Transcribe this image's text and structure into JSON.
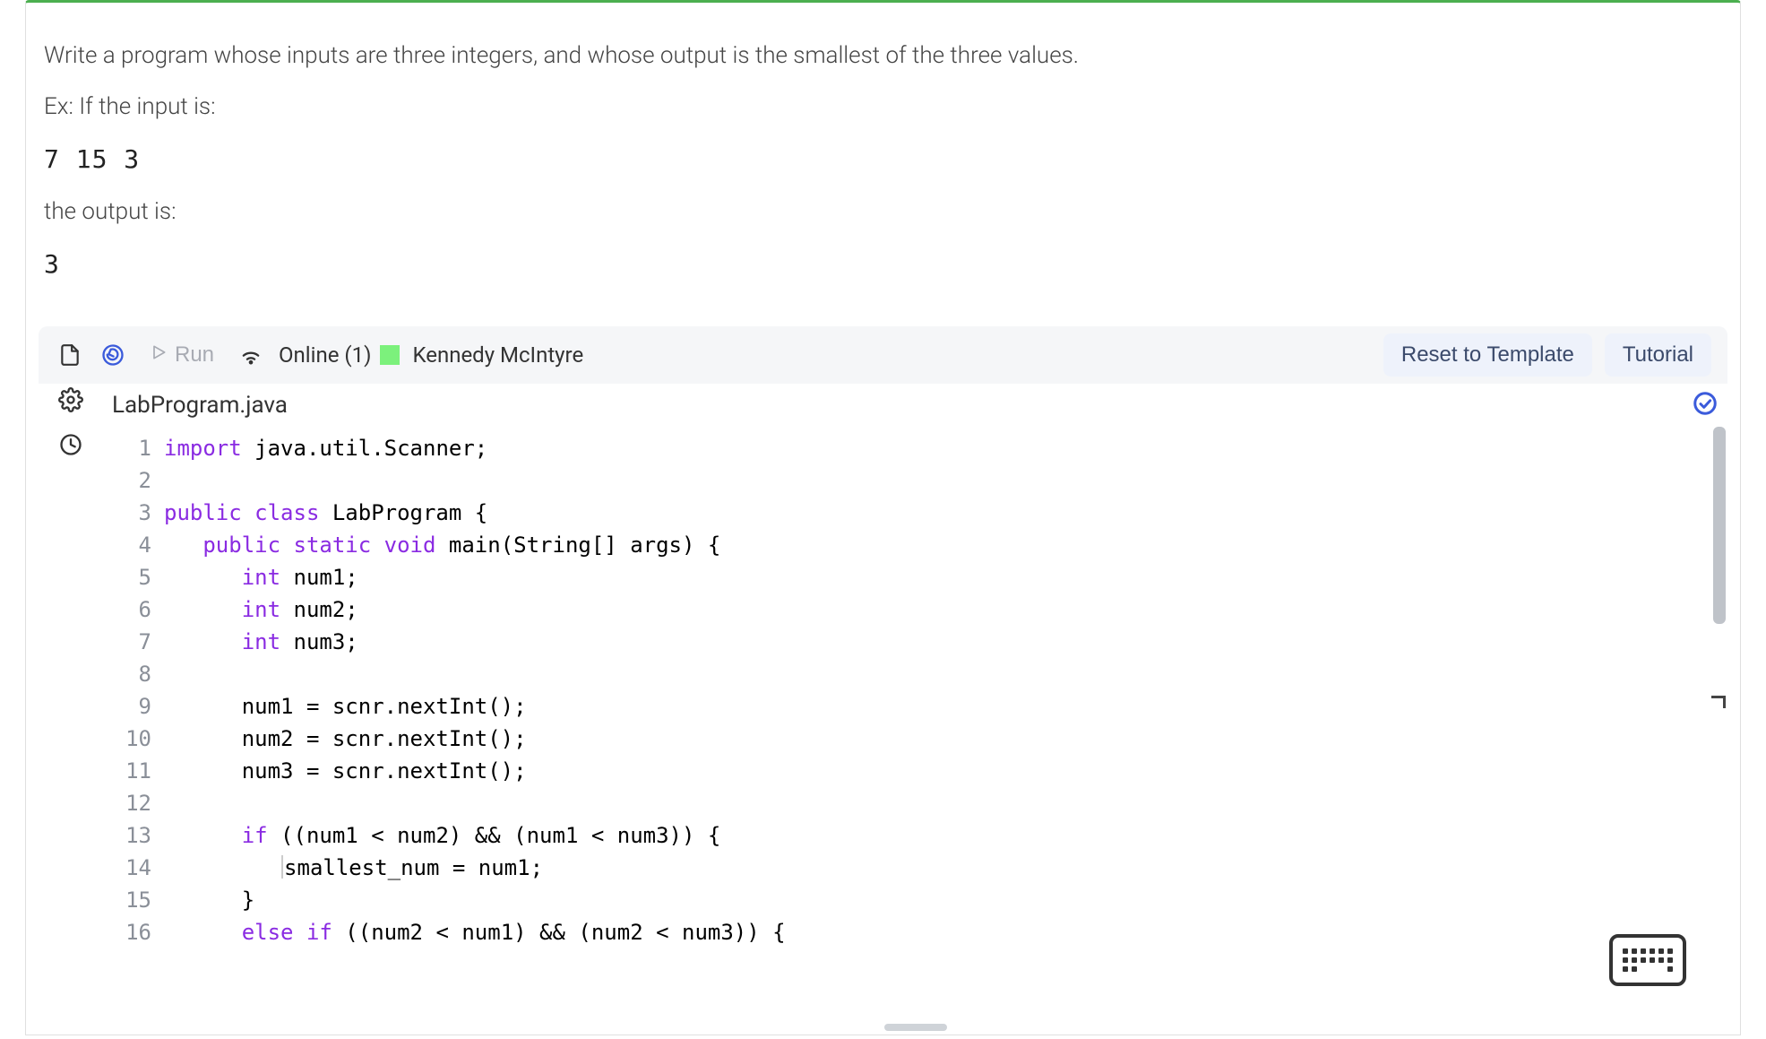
{
  "problem": {
    "description": "Write a program whose inputs are three integers, and whose output is the smallest of the three values.",
    "example_intro": "Ex: If the input is:",
    "example_input": "7 15 3",
    "output_intro": "the output is:",
    "example_output": "3"
  },
  "toolbar": {
    "run_label": "Run",
    "online_label": "Online (1)",
    "user_name": "Kennedy McIntyre",
    "reset_label": "Reset to Template",
    "tutorial_label": "Tutorial"
  },
  "file": {
    "name": "LabProgram.java"
  },
  "code": {
    "lines": [
      {
        "n": 1,
        "tokens": [
          {
            "t": "import",
            "c": "kw"
          },
          {
            "t": " java.util.Scanner;",
            "c": "tok"
          }
        ]
      },
      {
        "n": 2,
        "tokens": []
      },
      {
        "n": 3,
        "tokens": [
          {
            "t": "public class",
            "c": "kw"
          },
          {
            "t": " LabProgram {",
            "c": "tok"
          }
        ]
      },
      {
        "n": 4,
        "tokens": [
          {
            "t": "   ",
            "c": "tok"
          },
          {
            "t": "public static void",
            "c": "kw"
          },
          {
            "t": " main(String[] args) {",
            "c": "tok"
          }
        ]
      },
      {
        "n": 5,
        "tokens": [
          {
            "t": "      ",
            "c": "tok"
          },
          {
            "t": "int",
            "c": "kw"
          },
          {
            "t": " num1;",
            "c": "tok"
          }
        ]
      },
      {
        "n": 6,
        "tokens": [
          {
            "t": "      ",
            "c": "tok"
          },
          {
            "t": "int",
            "c": "kw"
          },
          {
            "t": " num2;",
            "c": "tok"
          }
        ]
      },
      {
        "n": 7,
        "tokens": [
          {
            "t": "      ",
            "c": "tok"
          },
          {
            "t": "int",
            "c": "kw"
          },
          {
            "t": " num3;",
            "c": "tok"
          }
        ]
      },
      {
        "n": 8,
        "tokens": []
      },
      {
        "n": 9,
        "tokens": [
          {
            "t": "      num1 = scnr.nextInt();",
            "c": "tok"
          }
        ]
      },
      {
        "n": 10,
        "tokens": [
          {
            "t": "      num2 = scnr.nextInt();",
            "c": "tok"
          }
        ]
      },
      {
        "n": 11,
        "tokens": [
          {
            "t": "      num3 = scnr.nextInt();",
            "c": "tok"
          }
        ]
      },
      {
        "n": 12,
        "tokens": []
      },
      {
        "n": 13,
        "tokens": [
          {
            "t": "      ",
            "c": "tok"
          },
          {
            "t": "if",
            "c": "kw"
          },
          {
            "t": " ((num1 < num2) && (num1 < num3)) {",
            "c": "tok"
          }
        ]
      },
      {
        "n": 14,
        "tokens": [
          {
            "t": "         ",
            "c": "tok"
          },
          {
            "cursor": true
          },
          {
            "t": "smallest_num = num1;",
            "c": "tok"
          }
        ]
      },
      {
        "n": 15,
        "tokens": [
          {
            "t": "      }",
            "c": "tok"
          }
        ]
      },
      {
        "n": 16,
        "tokens": [
          {
            "t": "      ",
            "c": "tok"
          },
          {
            "t": "else if",
            "c": "kw"
          },
          {
            "t": " ((num2 < num1) && (num2 < num3)) {",
            "c": "tok"
          }
        ]
      }
    ]
  },
  "colors": {
    "keyword": "#8a2be2",
    "text": "#2b2b2b",
    "line_number": "#8a8f98",
    "toolbar_bg": "#f5f6f8",
    "pill_bg": "#eef2fb",
    "pill_text": "#3b4a6b",
    "online_indicator": "#7cf17c",
    "accent_blue": "#3b5bdb",
    "scrollbar_thumb": "#bfc3c9",
    "border_top": "#4caf50"
  }
}
